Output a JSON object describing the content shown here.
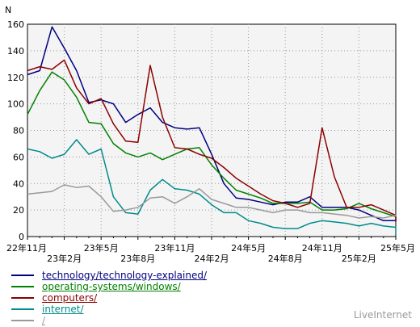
{
  "chart_data": {
    "type": "line",
    "ylabel": "N",
    "ylim": [
      0,
      160
    ],
    "yticks": [
      0,
      20,
      40,
      60,
      80,
      100,
      120,
      140,
      160
    ],
    "grid": true,
    "x_tick_labels": [
      {
        "label": "22年11月",
        "x": 0,
        "row": 0
      },
      {
        "label": "23年2月",
        "x": 3,
        "row": 1
      },
      {
        "label": "23年5月",
        "x": 6,
        "row": 0
      },
      {
        "label": "23年8月",
        "x": 9,
        "row": 1
      },
      {
        "label": "23年11月",
        "x": 12,
        "row": 0
      },
      {
        "label": "24年2月",
        "x": 15,
        "row": 1
      },
      {
        "label": "24年5月",
        "x": 18,
        "row": 0
      },
      {
        "label": "24年8月",
        "x": 21,
        "row": 1
      },
      {
        "label": "24年11月",
        "x": 24,
        "row": 0
      },
      {
        "label": "25年2月",
        "x": 27,
        "row": 1
      },
      {
        "label": "25年5月",
        "x": 30,
        "row": 0
      }
    ],
    "x_max": 30,
    "series": [
      {
        "name": "technology/technology-explained/",
        "color": "#000080",
        "points": [
          [
            0,
            122
          ],
          [
            1,
            125
          ],
          [
            2,
            158
          ],
          [
            3,
            142
          ],
          [
            4,
            125
          ],
          [
            5,
            101
          ],
          [
            6,
            103
          ],
          [
            7,
            100
          ],
          [
            8,
            86
          ],
          [
            9,
            92
          ],
          [
            10,
            97
          ],
          [
            11,
            86
          ],
          [
            12,
            82
          ],
          [
            13,
            81
          ],
          [
            14,
            82
          ],
          [
            15,
            62
          ],
          [
            16,
            40
          ],
          [
            17,
            29
          ],
          [
            18,
            28
          ],
          [
            19,
            26
          ],
          [
            20,
            24
          ],
          [
            21,
            26
          ],
          [
            22,
            26
          ],
          [
            23,
            30
          ],
          [
            24,
            22
          ],
          [
            25,
            22
          ],
          [
            26,
            22
          ],
          [
            27,
            20
          ],
          [
            28,
            16
          ],
          [
            29,
            12
          ],
          [
            30,
            12
          ],
          [
            31,
            15
          ]
        ]
      },
      {
        "name": "operating-systems/windows/",
        "color": "#008000",
        "points": [
          [
            0,
            92
          ],
          [
            1,
            110
          ],
          [
            2,
            124
          ],
          [
            3,
            118
          ],
          [
            4,
            105
          ],
          [
            5,
            86
          ],
          [
            6,
            85
          ],
          [
            7,
            70
          ],
          [
            8,
            63
          ],
          [
            9,
            60
          ],
          [
            10,
            63
          ],
          [
            11,
            58
          ],
          [
            12,
            62
          ],
          [
            13,
            66
          ],
          [
            14,
            67
          ],
          [
            15,
            54
          ],
          [
            16,
            44
          ],
          [
            17,
            35
          ],
          [
            18,
            32
          ],
          [
            19,
            29
          ],
          [
            20,
            25
          ],
          [
            21,
            25
          ],
          [
            22,
            25
          ],
          [
            23,
            26
          ],
          [
            24,
            20
          ],
          [
            25,
            20
          ],
          [
            26,
            21
          ],
          [
            27,
            25
          ],
          [
            28,
            21
          ],
          [
            29,
            18
          ],
          [
            30,
            15
          ],
          [
            31,
            16
          ]
        ]
      },
      {
        "name": "computers/",
        "color": "#8b0000",
        "points": [
          [
            0,
            125
          ],
          [
            1,
            128
          ],
          [
            2,
            126
          ],
          [
            3,
            133
          ],
          [
            4,
            112
          ],
          [
            5,
            100
          ],
          [
            6,
            104
          ],
          [
            7,
            85
          ],
          [
            8,
            72
          ],
          [
            9,
            71
          ],
          [
            10,
            129
          ],
          [
            11,
            90
          ],
          [
            12,
            67
          ],
          [
            13,
            66
          ],
          [
            14,
            62
          ],
          [
            15,
            59
          ],
          [
            16,
            52
          ],
          [
            17,
            44
          ],
          [
            18,
            38
          ],
          [
            19,
            32
          ],
          [
            20,
            27
          ],
          [
            21,
            25
          ],
          [
            22,
            22
          ],
          [
            23,
            25
          ],
          [
            24,
            82
          ],
          [
            25,
            45
          ],
          [
            26,
            22
          ],
          [
            27,
            22
          ],
          [
            28,
            24
          ],
          [
            29,
            20
          ],
          [
            30,
            16
          ],
          [
            31,
            11
          ]
        ]
      },
      {
        "name": "internet/",
        "color": "#008b8b",
        "points": [
          [
            0,
            66
          ],
          [
            1,
            64
          ],
          [
            2,
            59
          ],
          [
            3,
            62
          ],
          [
            4,
            73
          ],
          [
            5,
            62
          ],
          [
            6,
            66
          ],
          [
            7,
            30
          ],
          [
            8,
            18
          ],
          [
            9,
            17
          ],
          [
            10,
            35
          ],
          [
            11,
            43
          ],
          [
            12,
            36
          ],
          [
            13,
            35
          ],
          [
            14,
            32
          ],
          [
            15,
            24
          ],
          [
            16,
            18
          ],
          [
            17,
            18
          ],
          [
            18,
            12
          ],
          [
            19,
            10
          ],
          [
            20,
            7
          ],
          [
            21,
            6
          ],
          [
            22,
            6
          ],
          [
            23,
            10
          ],
          [
            24,
            12
          ],
          [
            25,
            11
          ],
          [
            26,
            10
          ],
          [
            27,
            8
          ],
          [
            28,
            10
          ],
          [
            29,
            8
          ],
          [
            30,
            7
          ],
          [
            31,
            2
          ]
        ]
      },
      {
        "name": "/",
        "color": "#999999",
        "points": [
          [
            0,
            32
          ],
          [
            1,
            33
          ],
          [
            2,
            34
          ],
          [
            3,
            39
          ],
          [
            4,
            37
          ],
          [
            5,
            38
          ],
          [
            6,
            30
          ],
          [
            7,
            19
          ],
          [
            8,
            20
          ],
          [
            9,
            22
          ],
          [
            10,
            29
          ],
          [
            11,
            30
          ],
          [
            12,
            25
          ],
          [
            13,
            30
          ],
          [
            14,
            36
          ],
          [
            15,
            28
          ],
          [
            16,
            25
          ],
          [
            17,
            22
          ],
          [
            18,
            22
          ],
          [
            19,
            20
          ],
          [
            20,
            18
          ],
          [
            21,
            20
          ],
          [
            22,
            20
          ],
          [
            23,
            18
          ],
          [
            24,
            18
          ],
          [
            25,
            17
          ],
          [
            26,
            16
          ],
          [
            27,
            14
          ],
          [
            28,
            15
          ],
          [
            29,
            14
          ],
          [
            30,
            16
          ],
          [
            31,
            15
          ]
        ]
      }
    ]
  },
  "brand": "LiveInternet"
}
